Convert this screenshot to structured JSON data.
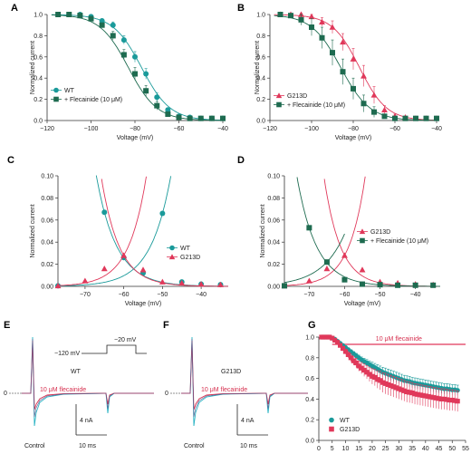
{
  "figure": {
    "panel_letters": [
      "A",
      "B",
      "C",
      "D",
      "E",
      "F",
      "G"
    ]
  },
  "colors": {
    "wt": "#1a9a9a",
    "flec_dark": "#1e6b50",
    "g213d": "#e0385a",
    "axis": "#333333"
  },
  "chart_data": [
    {
      "panel": "A",
      "type": "scatter",
      "xlabel": "Voltage (mV)",
      "ylabel": "Normalized current",
      "xlim": [
        -120,
        -40
      ],
      "ylim": [
        0,
        1.0
      ],
      "xticks": [
        -120,
        -100,
        -80,
        -60,
        -40
      ],
      "yticks": [
        0.0,
        0.2,
        0.4,
        0.6,
        0.8,
        1.0
      ],
      "legend_position": "bottom-left",
      "series": [
        {
          "name": "WT",
          "marker": "circle",
          "color_key": "wt",
          "fit": {
            "v_half": -77,
            "k": 6.5
          },
          "x": [
            -115,
            -110,
            -105,
            -100,
            -95,
            -90,
            -85,
            -80,
            -75,
            -70,
            -65,
            -60,
            -55,
            -50,
            -45,
            -40
          ],
          "y": [
            1.0,
            1.0,
            1.0,
            0.98,
            0.94,
            0.9,
            0.76,
            0.6,
            0.44,
            0.22,
            0.1,
            0.04,
            0.03,
            0.02,
            0.02,
            0.02
          ],
          "err": [
            0,
            0,
            0,
            0.01,
            0.02,
            0.03,
            0.04,
            0.05,
            0.05,
            0.04,
            0.02,
            0.01,
            0.01,
            0,
            0,
            0
          ]
        },
        {
          "name": "+ Flecainide (10 μM)",
          "marker": "square",
          "color_key": "flec_dark",
          "fit": {
            "v_half": -83,
            "k": 6.5
          },
          "x": [
            -115,
            -110,
            -105,
            -100,
            -95,
            -90,
            -85,
            -80,
            -75,
            -70,
            -65,
            -60,
            -55,
            -50,
            -45,
            -40
          ],
          "y": [
            1.0,
            1.0,
            0.99,
            0.96,
            0.9,
            0.8,
            0.62,
            0.44,
            0.28,
            0.14,
            0.06,
            0.03,
            0.02,
            0.02,
            0.02,
            0.02
          ],
          "err": [
            0,
            0,
            0.01,
            0.01,
            0.02,
            0.04,
            0.05,
            0.06,
            0.05,
            0.04,
            0.02,
            0.01,
            0,
            0,
            0,
            0
          ]
        }
      ]
    },
    {
      "panel": "B",
      "type": "scatter",
      "xlabel": "Voltage (mV)",
      "ylabel": "Normalized current",
      "xlim": [
        -120,
        -40
      ],
      "ylim": [
        0,
        1.0
      ],
      "xticks": [
        -120,
        -100,
        -80,
        -60,
        -40
      ],
      "yticks": [
        0.0,
        0.2,
        0.4,
        0.6,
        0.8,
        1.0
      ],
      "legend_position": "bottom-left",
      "series": [
        {
          "name": "G213D",
          "marker": "triangle",
          "color_key": "g213d",
          "fit": {
            "v_half": -77,
            "k": 6.5
          },
          "x": [
            -115,
            -110,
            -105,
            -100,
            -95,
            -90,
            -85,
            -80,
            -75,
            -70,
            -65,
            -60,
            -55,
            -50,
            -45,
            -40
          ],
          "y": [
            1.0,
            1.0,
            1.0,
            0.98,
            0.93,
            0.88,
            0.74,
            0.58,
            0.42,
            0.24,
            0.1,
            0.04,
            0.03,
            0.02,
            0.02,
            0.02
          ],
          "err": [
            0,
            0,
            0.01,
            0.02,
            0.04,
            0.06,
            0.08,
            0.1,
            0.1,
            0.08,
            0.04,
            0.02,
            0.01,
            0,
            0,
            0
          ]
        },
        {
          "name": "+ Flecainide (10 μM)",
          "marker": "square",
          "color_key": "flec_dark",
          "fit": {
            "v_half": -86,
            "k": 7
          },
          "x": [
            -115,
            -110,
            -105,
            -100,
            -95,
            -90,
            -85,
            -80,
            -75,
            -70,
            -65,
            -60,
            -55,
            -50,
            -45,
            -40
          ],
          "y": [
            1.0,
            0.99,
            0.95,
            0.88,
            0.78,
            0.64,
            0.46,
            0.3,
            0.16,
            0.08,
            0.04,
            0.02,
            0.02,
            0.02,
            0.02,
            0.02
          ],
          "err": [
            0,
            0.02,
            0.05,
            0.08,
            0.1,
            0.12,
            0.12,
            0.1,
            0.08,
            0.05,
            0.02,
            0.01,
            0,
            0,
            0,
            0
          ]
        }
      ]
    },
    {
      "panel": "C",
      "type": "scatter",
      "xlabel": "Voltage (mV)",
      "ylabel": "Normalized current",
      "xlim": [
        -77,
        -33
      ],
      "ylim": [
        0,
        0.1
      ],
      "xticks": [
        -70,
        -60,
        -50,
        -40
      ],
      "yticks": [
        0.0,
        0.02,
        0.04,
        0.06,
        0.08,
        0.1
      ],
      "legend_position": "center-right",
      "series": [
        {
          "name": "WT",
          "marker": "circle",
          "color_key": "wt",
          "x": [
            -80,
            -65,
            -60,
            -55,
            -50,
            -45,
            -40,
            -35
          ],
          "y": [
            0.0005,
            0.067,
            0.026,
            0.012,
            0.066,
            0.004,
            0.002,
            0.0015
          ]
        },
        {
          "name": "G213D",
          "marker": "triangle",
          "color_key": "g213d",
          "x": [
            -80,
            -70,
            -65,
            -60,
            -55,
            -50,
            -45,
            -40,
            -35
          ],
          "y": [
            0.0005,
            0.005,
            0.016,
            0.028,
            0.015,
            0.004,
            0.003,
            0.002,
            0.0015
          ]
        }
      ]
    },
    {
      "panel": "D",
      "type": "scatter",
      "xlabel": "Voltage (mV)",
      "ylabel": "Normalized current",
      "xlim": [
        -77,
        -33
      ],
      "ylim": [
        0,
        0.1
      ],
      "xticks": [
        -70,
        -60,
        -50,
        -40
      ],
      "yticks": [
        0.0,
        0.02,
        0.04,
        0.06,
        0.08,
        0.1
      ],
      "legend_position": "center-right",
      "series": [
        {
          "name": "G213D",
          "marker": "triangle",
          "color_key": "g213d",
          "x": [
            -80,
            -70,
            -65,
            -60,
            -55,
            -50,
            -45,
            -40,
            -35
          ],
          "y": [
            0.0005,
            0.005,
            0.016,
            0.028,
            0.015,
            0.004,
            0.003,
            0.002,
            0.0015
          ]
        },
        {
          "name": "+ Flecainide (10 μM)",
          "marker": "square",
          "color_key": "flec_dark",
          "x": [
            -80,
            -70,
            -65,
            -60,
            -55,
            -50,
            -45,
            -40,
            -35
          ],
          "y": [
            0.0005,
            0.053,
            0.022,
            0.006,
            0.002,
            0.0015,
            0.001,
            0.001,
            0.001
          ]
        }
      ]
    },
    {
      "panel": "G",
      "type": "scatter",
      "xlabel": "",
      "ylabel": "",
      "xlim": [
        0,
        55
      ],
      "ylim": [
        0,
        1.0
      ],
      "xticks": [
        0,
        5,
        10,
        15,
        20,
        25,
        30,
        35,
        40,
        45,
        50,
        55
      ],
      "yticks": [
        0.0,
        0.2,
        0.4,
        0.6,
        0.8,
        1.0
      ],
      "legend_position": "bottom-left",
      "drug_bar": {
        "label": "10 μM flecainide",
        "start": 5,
        "end": 55
      },
      "series": [
        {
          "name": "WT",
          "marker": "circle",
          "color_key": "wt",
          "x": [
            1,
            2,
            3,
            4,
            5,
            6,
            7,
            8,
            9,
            10,
            11,
            12,
            13,
            14,
            15,
            16,
            17,
            18,
            19,
            20,
            21,
            22,
            23,
            24,
            25,
            26,
            27,
            28,
            29,
            30,
            31,
            32,
            33,
            34,
            35,
            36,
            37,
            38,
            39,
            40,
            41,
            42,
            43,
            44,
            45,
            46,
            47,
            48,
            49,
            50,
            51,
            52
          ],
          "y": [
            1.0,
            1.0,
            1.0,
            1.0,
            0.99,
            0.98,
            0.96,
            0.94,
            0.92,
            0.9,
            0.88,
            0.86,
            0.84,
            0.82,
            0.8,
            0.78,
            0.765,
            0.75,
            0.735,
            0.72,
            0.705,
            0.69,
            0.675,
            0.66,
            0.65,
            0.64,
            0.63,
            0.62,
            0.61,
            0.6,
            0.59,
            0.58,
            0.575,
            0.57,
            0.56,
            0.555,
            0.55,
            0.545,
            0.54,
            0.535,
            0.53,
            0.525,
            0.52,
            0.515,
            0.51,
            0.505,
            0.5,
            0.5,
            0.495,
            0.49,
            0.49,
            0.485
          ],
          "err_scale": 0.05
        },
        {
          "name": "G213D",
          "marker": "square",
          "color_key": "g213d",
          "x": [
            1,
            2,
            3,
            4,
            5,
            6,
            7,
            8,
            9,
            10,
            11,
            12,
            13,
            14,
            15,
            16,
            17,
            18,
            19,
            20,
            21,
            22,
            23,
            24,
            25,
            26,
            27,
            28,
            29,
            30,
            31,
            32,
            33,
            34,
            35,
            36,
            37,
            38,
            39,
            40,
            41,
            42,
            43,
            44,
            45,
            46,
            47,
            48,
            49,
            50,
            51,
            52
          ],
          "y": [
            1.0,
            1.0,
            1.0,
            1.0,
            0.99,
            0.97,
            0.95,
            0.92,
            0.89,
            0.86,
            0.83,
            0.8,
            0.77,
            0.75,
            0.72,
            0.7,
            0.68,
            0.66,
            0.64,
            0.62,
            0.61,
            0.59,
            0.58,
            0.56,
            0.55,
            0.54,
            0.53,
            0.52,
            0.51,
            0.5,
            0.49,
            0.48,
            0.47,
            0.465,
            0.46,
            0.45,
            0.445,
            0.44,
            0.435,
            0.43,
            0.425,
            0.42,
            0.415,
            0.41,
            0.405,
            0.4,
            0.4,
            0.395,
            0.39,
            0.39,
            0.385,
            0.38
          ],
          "err_scale": 0.1
        }
      ]
    }
  ],
  "traces": {
    "E": {
      "genotype": "WT",
      "drug_label": "10 μM flecainide",
      "control_label": "Control",
      "zero_label": "0",
      "scale_current": "4 nA",
      "scale_time": "10 ms",
      "protocol_hold": "−120 mV",
      "protocol_step": "−20 mV"
    },
    "F": {
      "genotype": "G213D",
      "drug_label": "10 μM flecainide",
      "control_label": "Control",
      "zero_label": "0",
      "scale_current": "4 nA",
      "scale_time": "10 ms"
    }
  }
}
